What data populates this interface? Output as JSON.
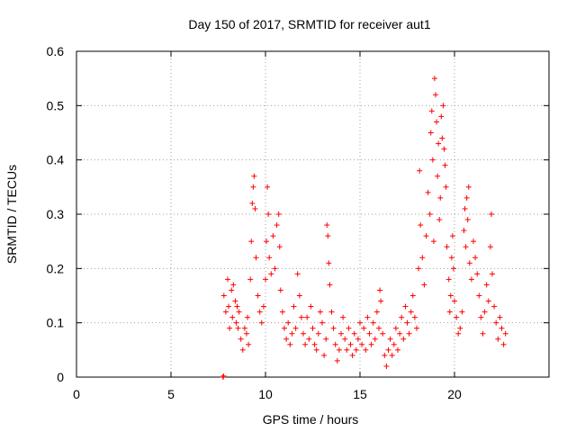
{
  "chart_data": {
    "type": "scatter",
    "title": "Day 150 of 2017, SRMTID for receiver aut1",
    "xlabel": "GPS time / hours",
    "ylabel": "SRMTID / TECUs",
    "xlim": [
      0,
      25
    ],
    "ylim": [
      0,
      0.6
    ],
    "xticks": [
      0,
      5,
      10,
      15,
      20
    ],
    "xtick_labels": [
      "0",
      "5",
      "10",
      "15",
      "20"
    ],
    "yticks": [
      0,
      0.1,
      0.2,
      0.3,
      0.4,
      0.5,
      0.6
    ],
    "ytick_labels": [
      "0",
      "0.1",
      "0.2",
      "0.3",
      "0.4",
      "0.5",
      "0.6"
    ],
    "grid": true,
    "series": [
      {
        "name": "SRMTID",
        "marker": "+",
        "color": "#ff0000",
        "points": [
          [
            7.75,
            0.0
          ],
          [
            7.78,
            0.002
          ],
          [
            7.8,
            0.15
          ],
          [
            7.9,
            0.12
          ],
          [
            8.0,
            0.18
          ],
          [
            8.05,
            0.13
          ],
          [
            8.1,
            0.09
          ],
          [
            8.2,
            0.16
          ],
          [
            8.25,
            0.11
          ],
          [
            8.3,
            0.17
          ],
          [
            8.4,
            0.14
          ],
          [
            8.45,
            0.1
          ],
          [
            8.5,
            0.13
          ],
          [
            8.55,
            0.09
          ],
          [
            8.6,
            0.12
          ],
          [
            8.7,
            0.07
          ],
          [
            8.8,
            0.05
          ],
          [
            8.9,
            0.09
          ],
          [
            9.0,
            0.08
          ],
          [
            9.05,
            0.11
          ],
          [
            9.1,
            0.06
          ],
          [
            9.2,
            0.18
          ],
          [
            9.25,
            0.25
          ],
          [
            9.3,
            0.32
          ],
          [
            9.35,
            0.35
          ],
          [
            9.4,
            0.37
          ],
          [
            9.45,
            0.31
          ],
          [
            9.5,
            0.22
          ],
          [
            9.6,
            0.15
          ],
          [
            9.7,
            0.12
          ],
          [
            9.8,
            0.1
          ],
          [
            9.9,
            0.13
          ],
          [
            10.0,
            0.18
          ],
          [
            10.05,
            0.25
          ],
          [
            10.1,
            0.35
          ],
          [
            10.15,
            0.3
          ],
          [
            10.2,
            0.22
          ],
          [
            10.3,
            0.19
          ],
          [
            10.4,
            0.26
          ],
          [
            10.5,
            0.2
          ],
          [
            10.6,
            0.28
          ],
          [
            10.7,
            0.3
          ],
          [
            10.75,
            0.24
          ],
          [
            10.8,
            0.16
          ],
          [
            10.9,
            0.12
          ],
          [
            11.0,
            0.09
          ],
          [
            11.1,
            0.07
          ],
          [
            11.2,
            0.1
          ],
          [
            11.3,
            0.06
          ],
          [
            11.4,
            0.08
          ],
          [
            11.5,
            0.13
          ],
          [
            11.6,
            0.09
          ],
          [
            11.7,
            0.19
          ],
          [
            11.8,
            0.15
          ],
          [
            11.9,
            0.11
          ],
          [
            12.0,
            0.08
          ],
          [
            12.1,
            0.06
          ],
          [
            12.2,
            0.11
          ],
          [
            12.3,
            0.07
          ],
          [
            12.4,
            0.13
          ],
          [
            12.5,
            0.09
          ],
          [
            12.6,
            0.06
          ],
          [
            12.7,
            0.05
          ],
          [
            12.8,
            0.08
          ],
          [
            12.9,
            0.12
          ],
          [
            13.0,
            0.1
          ],
          [
            13.1,
            0.04
          ],
          [
            13.2,
            0.07
          ],
          [
            13.25,
            0.28
          ],
          [
            13.3,
            0.26
          ],
          [
            13.35,
            0.21
          ],
          [
            13.4,
            0.17
          ],
          [
            13.5,
            0.12
          ],
          [
            13.6,
            0.09
          ],
          [
            13.7,
            0.06
          ],
          [
            13.8,
            0.03
          ],
          [
            13.9,
            0.05
          ],
          [
            14.0,
            0.08
          ],
          [
            14.1,
            0.11
          ],
          [
            14.2,
            0.07
          ],
          [
            14.3,
            0.05
          ],
          [
            14.4,
            0.09
          ],
          [
            14.5,
            0.06
          ],
          [
            14.6,
            0.04
          ],
          [
            14.7,
            0.08
          ],
          [
            14.8,
            0.05
          ],
          [
            14.9,
            0.07
          ],
          [
            15.0,
            0.1
          ],
          [
            15.1,
            0.06
          ],
          [
            15.2,
            0.09
          ],
          [
            15.3,
            0.05
          ],
          [
            15.4,
            0.11
          ],
          [
            15.5,
            0.08
          ],
          [
            15.6,
            0.06
          ],
          [
            15.7,
            0.1
          ],
          [
            15.8,
            0.07
          ],
          [
            15.9,
            0.12
          ],
          [
            16.0,
            0.09
          ],
          [
            16.05,
            0.16
          ],
          [
            16.1,
            0.14
          ],
          [
            16.2,
            0.08
          ],
          [
            16.3,
            0.04
          ],
          [
            16.4,
            0.02
          ],
          [
            16.5,
            0.05
          ],
          [
            16.6,
            0.07
          ],
          [
            16.7,
            0.04
          ],
          [
            16.8,
            0.06
          ],
          [
            16.9,
            0.09
          ],
          [
            17.0,
            0.05
          ],
          [
            17.1,
            0.08
          ],
          [
            17.2,
            0.11
          ],
          [
            17.3,
            0.07
          ],
          [
            17.4,
            0.13
          ],
          [
            17.5,
            0.1
          ],
          [
            17.6,
            0.08
          ],
          [
            17.7,
            0.12
          ],
          [
            17.8,
            0.15
          ],
          [
            17.9,
            0.11
          ],
          [
            18.0,
            0.09
          ],
          [
            18.1,
            0.2
          ],
          [
            18.15,
            0.38
          ],
          [
            18.2,
            0.28
          ],
          [
            18.3,
            0.22
          ],
          [
            18.4,
            0.17
          ],
          [
            18.5,
            0.26
          ],
          [
            18.6,
            0.34
          ],
          [
            18.7,
            0.3
          ],
          [
            18.75,
            0.45
          ],
          [
            18.8,
            0.49
          ],
          [
            18.85,
            0.4
          ],
          [
            18.9,
            0.25
          ],
          [
            18.95,
            0.55
          ],
          [
            19.0,
            0.52
          ],
          [
            19.05,
            0.47
          ],
          [
            19.1,
            0.37
          ],
          [
            19.15,
            0.43
          ],
          [
            19.2,
            0.29
          ],
          [
            19.25,
            0.33
          ],
          [
            19.3,
            0.48
          ],
          [
            19.35,
            0.44
          ],
          [
            19.4,
            0.5
          ],
          [
            19.45,
            0.42
          ],
          [
            19.5,
            0.39
          ],
          [
            19.55,
            0.35
          ],
          [
            19.6,
            0.24
          ],
          [
            19.7,
            0.18
          ],
          [
            19.75,
            0.12
          ],
          [
            19.8,
            0.15
          ],
          [
            19.85,
            0.22
          ],
          [
            19.9,
            0.26
          ],
          [
            19.95,
            0.2
          ],
          [
            20.0,
            0.14
          ],
          [
            20.1,
            0.11
          ],
          [
            20.2,
            0.08
          ],
          [
            20.3,
            0.09
          ],
          [
            20.4,
            0.12
          ],
          [
            20.5,
            0.27
          ],
          [
            20.55,
            0.31
          ],
          [
            20.6,
            0.24
          ],
          [
            20.65,
            0.33
          ],
          [
            20.7,
            0.29
          ],
          [
            20.75,
            0.35
          ],
          [
            20.8,
            0.21
          ],
          [
            20.9,
            0.18
          ],
          [
            21.0,
            0.25
          ],
          [
            21.1,
            0.22
          ],
          [
            21.2,
            0.19
          ],
          [
            21.3,
            0.15
          ],
          [
            21.4,
            0.11
          ],
          [
            21.5,
            0.08
          ],
          [
            21.6,
            0.12
          ],
          [
            21.7,
            0.17
          ],
          [
            21.8,
            0.14
          ],
          [
            21.9,
            0.24
          ],
          [
            21.95,
            0.3
          ],
          [
            22.0,
            0.19
          ],
          [
            22.1,
            0.13
          ],
          [
            22.2,
            0.1
          ],
          [
            22.3,
            0.07
          ],
          [
            22.4,
            0.11
          ],
          [
            22.5,
            0.09
          ],
          [
            22.6,
            0.06
          ],
          [
            22.7,
            0.08
          ]
        ]
      }
    ]
  }
}
